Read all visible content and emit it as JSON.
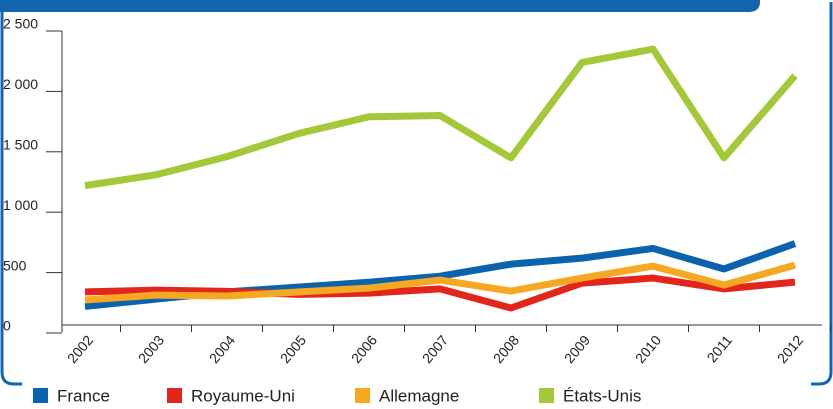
{
  "chart_data": {
    "type": "line",
    "categories": [
      "2002",
      "2003",
      "2004",
      "2005",
      "2006",
      "2007",
      "2008",
      "2009",
      "2010",
      "2011",
      "2012"
    ],
    "series": [
      {
        "name": "France",
        "color": "#0b63ae",
        "values": [
          220,
          280,
          340,
          380,
          420,
          470,
          570,
          620,
          700,
          530,
          740
        ]
      },
      {
        "name": "Royaume-Uni",
        "color": "#e3261b",
        "values": [
          340,
          355,
          345,
          320,
          330,
          365,
          207,
          413,
          455,
          365,
          421
        ]
      },
      {
        "name": "Allemagne",
        "color": "#f7a823",
        "values": [
          273,
          314,
          306,
          339,
          372,
          438,
          347,
          455,
          554,
          397,
          562
        ]
      },
      {
        "name": "États-Unis",
        "color": "#a3c93a",
        "values": [
          1220,
          1310,
          1460,
          1650,
          1790,
          1800,
          1450,
          2240,
          2350,
          1450,
          2130
        ]
      }
    ],
    "ylim": [
      0,
      2500
    ],
    "yticks": [
      0,
      500,
      {
        "value": 1000,
        "label": "1 000"
      },
      {
        "value": 1500,
        "label": "1 500"
      },
      {
        "value": 2000,
        "label": "2 000"
      },
      {
        "value": 2500,
        "label": "2 500"
      }
    ]
  }
}
